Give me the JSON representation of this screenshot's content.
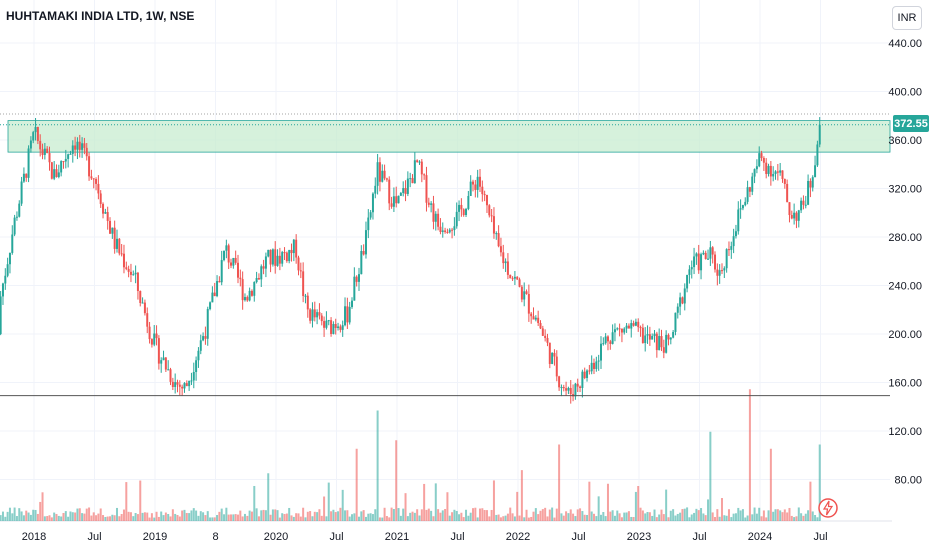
{
  "header": {
    "symbol_title": "HUHTAMAKI INDIA LTD, 1W, NSE",
    "currency": "INR",
    "last_price": "372.55"
  },
  "colors": {
    "up": "#26a69a",
    "down": "#ef5350",
    "zone_fill": "#c8ecd0",
    "zone_border": "#26a69a",
    "grid": "#f0f3fa",
    "text": "#131722",
    "level_line": "#555555"
  },
  "icons": {
    "flash": "flash-icon"
  },
  "chart_data": {
    "type": "candlestick",
    "title": "HUHTAMAKI INDIA LTD, 1W, NSE",
    "y_ticks": [
      "440.00",
      "400.00",
      "360.00",
      "320.00",
      "280.00",
      "240.00",
      "200.00",
      "160.00",
      "120.00",
      "80.00"
    ],
    "x_ticks": [
      "2018",
      "Jul",
      "2019",
      "8",
      "2020",
      "Jul",
      "2021",
      "Jul",
      "2022",
      "Jul",
      "2023",
      "Jul",
      "2024",
      "Jul"
    ],
    "ylim": [
      40,
      440
    ],
    "resistance_zone": [
      350,
      376
    ],
    "support_level": 150,
    "last_price": 372.55,
    "grid": true,
    "price_path": [
      [
        "2017-09",
        200
      ],
      [
        "2017-11",
        290
      ],
      [
        "2018-01",
        365
      ],
      [
        "2018-03",
        330
      ],
      [
        "2018-05",
        360
      ],
      [
        "2018-07",
        330
      ],
      [
        "2018-09",
        275
      ],
      [
        "2018-11",
        245
      ],
      [
        "2019-01",
        190
      ],
      [
        "2019-03",
        160
      ],
      [
        "2019-04",
        155
      ],
      [
        "2019-06",
        205
      ],
      [
        "2019-08",
        270
      ],
      [
        "2019-10",
        230
      ],
      [
        "2019-12",
        260
      ],
      [
        "2020-03",
        270
      ],
      [
        "2020-04",
        220
      ],
      [
        "2020-06",
        205
      ],
      [
        "2020-08",
        215
      ],
      [
        "2020-10",
        280
      ],
      [
        "2020-11",
        335
      ],
      [
        "2021-01",
        305
      ],
      [
        "2021-03",
        340
      ],
      [
        "2021-05",
        290
      ],
      [
        "2021-07",
        295
      ],
      [
        "2021-09",
        330
      ],
      [
        "2021-11",
        270
      ],
      [
        "2022-01",
        240
      ],
      [
        "2022-03",
        210
      ],
      [
        "2022-05",
        165
      ],
      [
        "2022-06",
        150
      ],
      [
        "2022-08",
        170
      ],
      [
        "2022-10",
        200
      ],
      [
        "2022-12",
        205
      ],
      [
        "2023-02",
        195
      ],
      [
        "2023-04",
        190
      ],
      [
        "2023-06",
        255
      ],
      [
        "2023-08",
        265
      ],
      [
        "2023-09",
        250
      ],
      [
        "2023-11",
        300
      ],
      [
        "2024-01",
        345
      ],
      [
        "2024-03",
        330
      ],
      [
        "2024-04",
        300
      ],
      [
        "2024-05",
        300
      ],
      [
        "2024-06",
        325
      ],
      [
        "2024-07",
        372.55
      ]
    ],
    "volume_spikes": [
      [
        "2020-09",
        85
      ],
      [
        "2020-11",
        130
      ],
      [
        "2021-01",
        95
      ],
      [
        "2022-05",
        90
      ],
      [
        "2023-08",
        105
      ],
      [
        "2023-12",
        155
      ],
      [
        "2024-02",
        85
      ],
      [
        "2024-07",
        90
      ]
    ]
  }
}
